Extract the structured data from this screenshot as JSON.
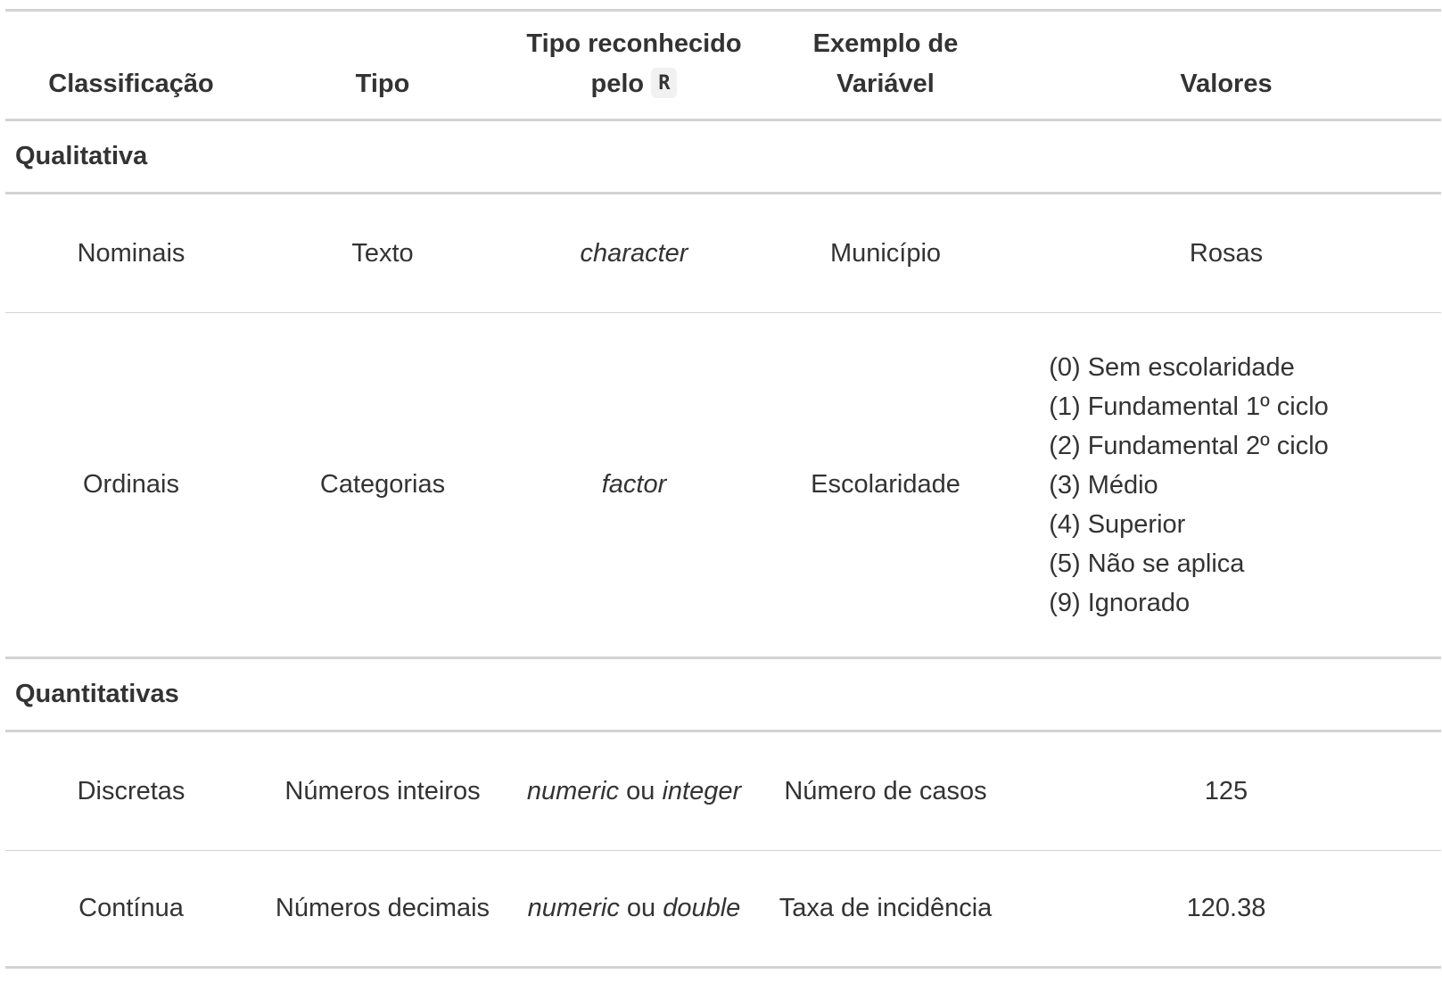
{
  "headers": {
    "classificacao": "Classificação",
    "tipo": "Tipo",
    "tipo_r_line1": "Tipo reconhecido",
    "tipo_r_line2": "pelo",
    "tipo_r_code": "R",
    "exemplo_line1": "Exemplo de",
    "exemplo_line2": "Variável",
    "valores": "Valores"
  },
  "groups": [
    {
      "label": "Qualitativa",
      "rows": [
        {
          "classificacao": "Nominais",
          "tipo": "Texto",
          "tipo_r": "character",
          "exemplo": "Município",
          "valores": "Rosas"
        },
        {
          "classificacao": "Ordinais",
          "tipo": "Categorias",
          "tipo_r": "factor",
          "exemplo": "Escolaridade",
          "valores_list": [
            "(0) Sem escolaridade",
            "(1) Fundamental 1º ciclo",
            "(2) Fundamental 2º ciclo",
            "(3) Médio",
            "(4) Superior",
            "(5) Não se aplica",
            "(9) Ignorado"
          ]
        }
      ]
    },
    {
      "label": "Quantitativas",
      "rows": [
        {
          "classificacao": "Discretas",
          "tipo": "Números inteiros",
          "tipo_r_a": "numeric",
          "tipo_r_sep": "ou",
          "tipo_r_b": "integer",
          "exemplo": "Número de casos",
          "valores": "125"
        },
        {
          "classificacao": "Contínua",
          "tipo": "Números decimais",
          "tipo_r_a": "numeric",
          "tipo_r_sep": "ou",
          "tipo_r_b": "double",
          "exemplo": "Taxa de incidência",
          "valores": "120.38"
        }
      ]
    }
  ]
}
